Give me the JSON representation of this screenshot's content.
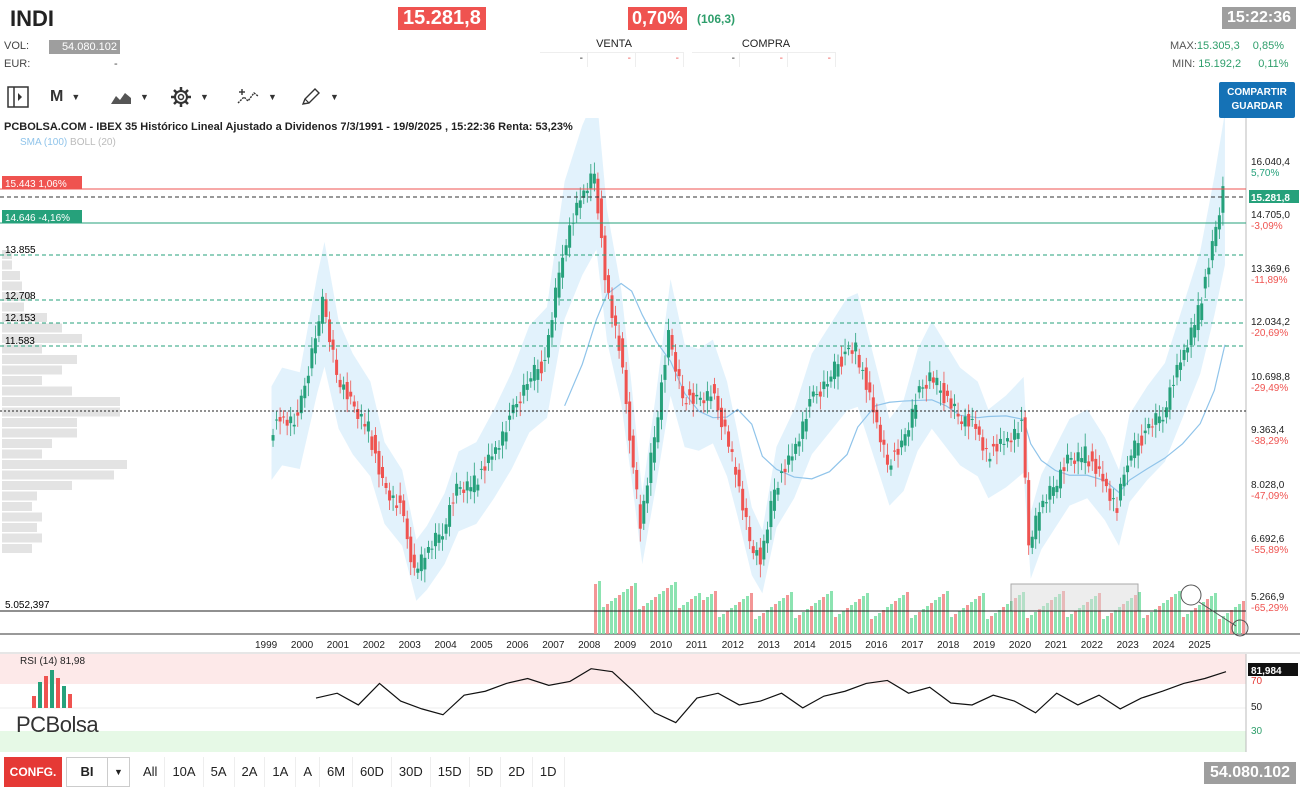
{
  "header": {
    "symbol": "INDI",
    "price": "15.281,8",
    "change_pct": "0,70%",
    "change_abs": "(106,3)",
    "time": "15:22:36",
    "vol_label": "VOL:",
    "vol_value": "54.080.102",
    "eur_label": "EUR:",
    "eur_value": "-",
    "max_label": "MAX:",
    "max_value": "15.305,3",
    "max_pct": "0,85%",
    "min_label": "MIN:",
    "min_value": "15.192,2",
    "min_pct": "0,11%"
  },
  "orderbook": {
    "venta_label": "VENTA",
    "compra_label": "COMPRA",
    "cells": [
      "-",
      "-",
      "-",
      "-",
      "-",
      "-"
    ]
  },
  "toolbar": {
    "period_label": "M",
    "share_label_1": "COMPARTIR",
    "share_label_2": "GUARDAR"
  },
  "chart": {
    "title": "PCBOLSA.COM - IBEX 35 Histórico Lineal Ajustado a Dividenos 7/3/1991 - 19/9/2025 , 15:22:36 Renta: 53,23%",
    "sma_label": "SMA (100)",
    "boll_label": "BOLL (20)",
    "tag_red": "15.443  1,06%",
    "tag_green": "14.646  -4,16%",
    "last_price_tag": "15.281,8",
    "level_labels": [
      "13.855",
      "12.708",
      "12.153",
      "11.583",
      "5.052,397"
    ],
    "rsi_label": "RSI (14)",
    "rsi_value": "81,98",
    "rsi_tag": "81,984",
    "rsi_levels": [
      "70",
      "50",
      "30"
    ],
    "logo_text": "PCBolsa",
    "colors": {
      "up": "#26a17b",
      "down": "#ef5350",
      "boll": "#d6ecfb",
      "sma": "#90c4ea"
    }
  },
  "chart_data": {
    "type": "line",
    "title": "PCBOLSA.COM - IBEX 35 Histórico Lineal Ajustado a Dividenos 7/3/1991 - 19/9/2025",
    "x_ticks": [
      "1999",
      "2000",
      "2001",
      "2002",
      "2003",
      "2004",
      "2005",
      "2006",
      "2007",
      "2008",
      "2009",
      "2010",
      "2011",
      "2012",
      "2013",
      "2014",
      "2015",
      "2016",
      "2017",
      "2018",
      "2019",
      "2020",
      "2021",
      "2022",
      "2023",
      "2024",
      "2025"
    ],
    "y_ticks": [
      {
        "value": "16.040,4",
        "pct": "5,70%"
      },
      {
        "value": "14.705,0",
        "pct": "-3,09%"
      },
      {
        "value": "13.369,6",
        "pct": "-11,89%"
      },
      {
        "value": "12.034,2",
        "pct": "-20,69%"
      },
      {
        "value": "10.698,8",
        "pct": "-29,49%"
      },
      {
        "value": "9.363,4",
        "pct": "-38,29%"
      },
      {
        "value": "8.028,0",
        "pct": "-47,09%"
      },
      {
        "value": "6.692,6",
        "pct": "-55,89%"
      },
      {
        "value": "5.266,9",
        "pct": "-65,29%"
      }
    ],
    "ylim": [
      5000,
      16500
    ],
    "series": [
      {
        "name": "IBEX 35",
        "x": [
          1998.7,
          1999.0,
          1999.5,
          2000.0,
          2000.2,
          2000.6,
          2001.0,
          2001.5,
          2001.9,
          2002.4,
          2002.8,
          2003.1,
          2003.6,
          2004.0,
          2004.5,
          2005.0,
          2005.5,
          2006.0,
          2006.5,
          2007.0,
          2007.5,
          2007.9,
          2008.2,
          2008.6,
          2008.9,
          2009.2,
          2009.6,
          2010.0,
          2010.4,
          2010.8,
          2011.2,
          2011.6,
          2011.9,
          2012.3,
          2012.6,
          2013.0,
          2013.5,
          2014.0,
          2014.5,
          2015.0,
          2015.3,
          2015.8,
          2016.2,
          2016.6,
          2017.0,
          2017.4,
          2017.8,
          2018.2,
          2018.7,
          2019.0,
          2019.5,
          2020.0,
          2020.2,
          2020.5,
          2020.9,
          2021.3,
          2021.8,
          2022.3,
          2022.7,
          2023.0,
          2023.5,
          2024.0,
          2024.5,
          2025.0,
          2025.4,
          2025.7
        ],
        "values": [
          9400,
          9800,
          9700,
          11800,
          12500,
          10800,
          10100,
          9500,
          8200,
          7600,
          6100,
          6400,
          7100,
          8000,
          8200,
          8900,
          9700,
          10700,
          11100,
          13800,
          15000,
          15700,
          13200,
          11500,
          9400,
          7100,
          9300,
          11700,
          10300,
          10200,
          10400,
          9500,
          8400,
          6800,
          6300,
          8100,
          8900,
          10100,
          10700,
          11300,
          11400,
          9900,
          8700,
          9100,
          10200,
          10800,
          10300,
          9800,
          9500,
          8900,
          9200,
          9600,
          6700,
          7500,
          8100,
          8700,
          8900,
          8300,
          7600,
          8800,
          9400,
          9900,
          11100,
          12300,
          13900,
          15282
        ]
      }
    ]
  },
  "rsi": {
    "values": [
      55,
      60,
      48,
      70,
      52,
      44,
      38,
      58,
      62,
      70,
      75,
      68,
      72,
      85,
      82,
      62,
      40,
      30,
      55,
      60,
      48,
      52,
      60,
      45,
      57,
      62,
      70,
      73,
      60,
      66,
      50,
      48,
      58,
      52,
      40,
      60,
      48,
      58,
      44,
      55,
      62,
      70,
      75,
      82
    ]
  },
  "footer": {
    "config_label": "CONFG.",
    "select_value": "BI",
    "ranges": [
      "All",
      "10A",
      "5A",
      "2A",
      "1A",
      "A",
      "6M",
      "60D",
      "30D",
      "15D",
      "5D",
      "2D",
      "1D"
    ],
    "volume": "54.080.102"
  }
}
